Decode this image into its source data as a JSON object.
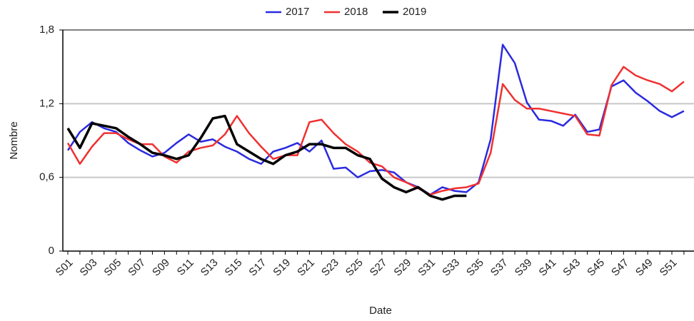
{
  "chart_data": {
    "type": "line",
    "x_label": "Date",
    "y_label": "Nombre",
    "categories": [
      "S01",
      null,
      "S03",
      null,
      "S05",
      null,
      "S07",
      null,
      "S09",
      null,
      "S11",
      null,
      "S13",
      null,
      "S15",
      null,
      "S17",
      null,
      "S19",
      null,
      "S21",
      null,
      "S23",
      null,
      "S25",
      null,
      "S27",
      null,
      "S29",
      null,
      "S31",
      null,
      "S33",
      null,
      "S35",
      null,
      "S37",
      null,
      "S39",
      null,
      "S41",
      null,
      "S43",
      null,
      "S45",
      null,
      "S47",
      null,
      "S49",
      null,
      "S51",
      null
    ],
    "ylim": [
      0,
      1.8
    ],
    "yticks": [
      0,
      {
        "value": 0.6,
        "label": "0,6"
      },
      {
        "value": 1.2,
        "label": "1,2"
      },
      {
        "value": 1.8,
        "label": "1,8"
      }
    ],
    "grid": true,
    "legend": "top",
    "series": [
      {
        "name": "2017",
        "color": "#2a2ae0",
        "values": [
          0.82,
          0.97,
          1.05,
          1.0,
          0.97,
          0.88,
          0.82,
          0.77,
          0.8,
          0.88,
          0.95,
          0.89,
          0.91,
          0.85,
          0.81,
          0.75,
          0.71,
          0.81,
          0.84,
          0.88,
          0.81,
          0.9,
          0.67,
          0.68,
          0.6,
          0.65,
          0.66,
          0.64,
          0.56,
          0.52,
          0.46,
          0.52,
          0.49,
          0.48,
          0.56,
          0.91,
          1.68,
          1.53,
          1.21,
          1.07,
          1.06,
          1.02,
          1.11,
          0.97,
          0.99,
          1.34,
          1.39,
          1.29,
          1.22,
          1.14,
          1.09,
          1.14
        ]
      },
      {
        "name": "2018",
        "color": "#f03030",
        "values": [
          0.88,
          0.71,
          0.85,
          0.96,
          0.96,
          0.91,
          0.87,
          0.87,
          0.77,
          0.72,
          0.81,
          0.84,
          0.86,
          0.95,
          1.1,
          0.96,
          0.85,
          0.75,
          0.78,
          0.78,
          1.05,
          1.07,
          0.96,
          0.87,
          0.81,
          0.72,
          0.69,
          0.6,
          0.56,
          0.51,
          0.46,
          0.49,
          0.51,
          0.52,
          0.55,
          0.8,
          1.36,
          1.23,
          1.16,
          1.16,
          1.14,
          1.12,
          1.1,
          0.95,
          0.94,
          1.35,
          1.5,
          1.43,
          1.39,
          1.36,
          1.3,
          1.38
        ]
      },
      {
        "name": "2019",
        "color": "#000000",
        "values": [
          1.0,
          0.84,
          1.04,
          1.02,
          1.0,
          0.93,
          0.87,
          0.8,
          0.78,
          0.75,
          0.78,
          0.92,
          1.08,
          1.1,
          0.87,
          0.81,
          0.75,
          0.71,
          0.78,
          0.81,
          0.87,
          0.87,
          0.84,
          0.84,
          0.78,
          0.75,
          0.59,
          0.52,
          0.48,
          0.52,
          0.45,
          0.42,
          0.45,
          0.45,
          null,
          null,
          null,
          null,
          null,
          null,
          null,
          null,
          null,
          null,
          null,
          null,
          null,
          null,
          null,
          null,
          null,
          null
        ]
      }
    ]
  }
}
